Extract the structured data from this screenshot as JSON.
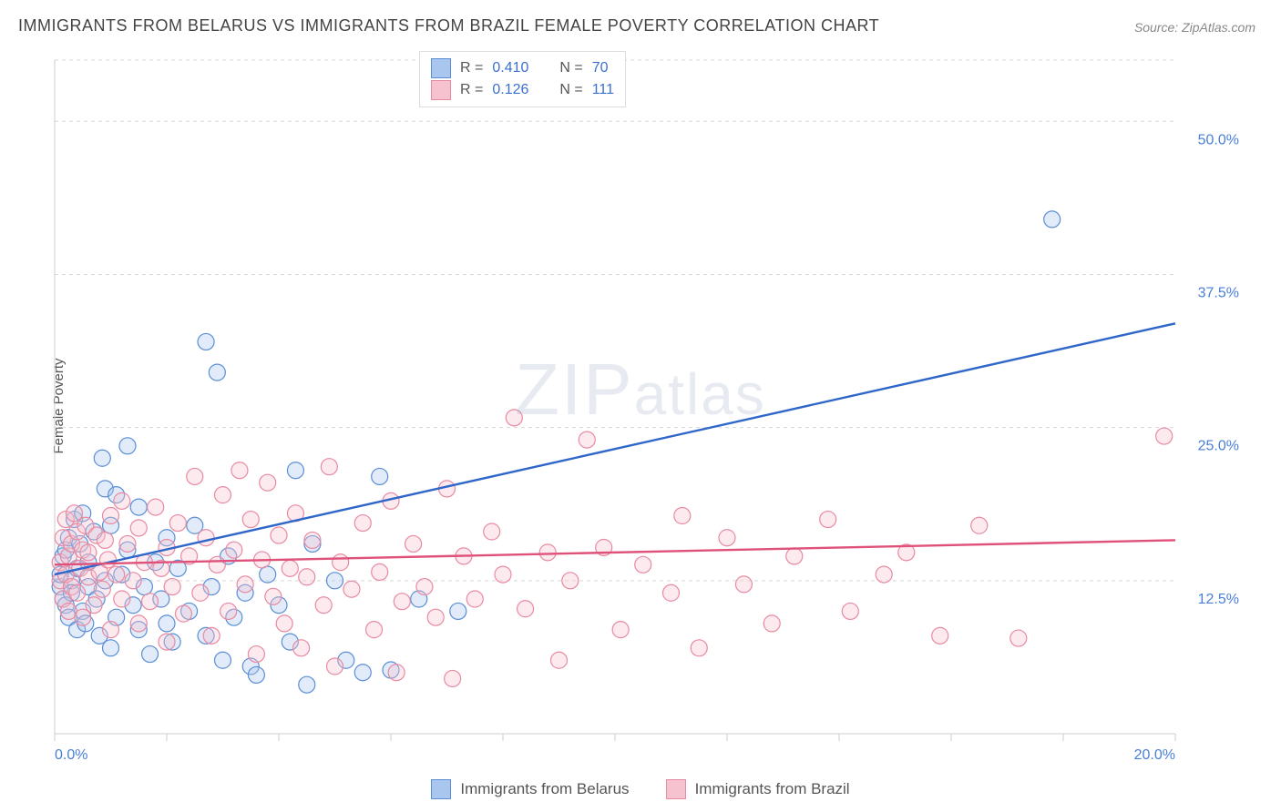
{
  "title": "IMMIGRANTS FROM BELARUS VS IMMIGRANTS FROM BRAZIL FEMALE POVERTY CORRELATION CHART",
  "source": "Source: ZipAtlas.com",
  "ylabel": "Female Poverty",
  "watermark_main": "ZIP",
  "watermark_rest": "atlas",
  "chart": {
    "type": "scatter",
    "xlim": [
      0,
      20
    ],
    "ylim": [
      0,
      55
    ],
    "background_color": "#ffffff",
    "grid_color": "#d8d8d8",
    "grid_dash": "4 4",
    "y_gridlines": [
      12.5,
      25.0,
      37.5,
      50.0
    ],
    "ytick_labels": [
      "12.5%",
      "25.0%",
      "37.5%",
      "50.0%"
    ],
    "x_axis_start_label": "0.0%",
    "x_axis_end_label": "20.0%",
    "x_ticks": [
      0,
      2,
      4,
      6,
      8,
      10,
      12,
      14,
      16,
      18,
      20
    ],
    "marker_radius": 9,
    "marker_stroke_width": 1.2,
    "fill_opacity": 0.35,
    "trend_line_width": 2.4,
    "series": [
      {
        "name": "Immigrants from Belarus",
        "color_fill": "#a9c7ee",
        "color_stroke": "#5b8ed6",
        "trend_color": "#2f66c9",
        "R": "0.410",
        "N": "70",
        "trend": {
          "x1": 0,
          "y1": 13.0,
          "x2": 20,
          "y2": 33.5
        },
        "points": [
          [
            0.1,
            12.0
          ],
          [
            0.1,
            13.0
          ],
          [
            0.15,
            11.0
          ],
          [
            0.15,
            14.5
          ],
          [
            0.2,
            15.0
          ],
          [
            0.2,
            10.5
          ],
          [
            0.25,
            9.5
          ],
          [
            0.25,
            16.0
          ],
          [
            0.3,
            12.5
          ],
          [
            0.3,
            11.5
          ],
          [
            0.35,
            17.5
          ],
          [
            0.4,
            8.5
          ],
          [
            0.4,
            13.5
          ],
          [
            0.45,
            15.5
          ],
          [
            0.5,
            10.0
          ],
          [
            0.5,
            18.0
          ],
          [
            0.55,
            9.0
          ],
          [
            0.6,
            12.0
          ],
          [
            0.6,
            14.0
          ],
          [
            0.7,
            16.5
          ],
          [
            0.75,
            11.0
          ],
          [
            0.8,
            8.0
          ],
          [
            0.85,
            22.5
          ],
          [
            0.9,
            20.0
          ],
          [
            0.9,
            12.5
          ],
          [
            1.0,
            7.0
          ],
          [
            1.0,
            17.0
          ],
          [
            1.1,
            19.5
          ],
          [
            1.1,
            9.5
          ],
          [
            1.2,
            13.0
          ],
          [
            1.3,
            15.0
          ],
          [
            1.3,
            23.5
          ],
          [
            1.4,
            10.5
          ],
          [
            1.5,
            8.5
          ],
          [
            1.5,
            18.5
          ],
          [
            1.6,
            12.0
          ],
          [
            1.7,
            6.5
          ],
          [
            1.8,
            14.0
          ],
          [
            1.9,
            11.0
          ],
          [
            2.0,
            9.0
          ],
          [
            2.0,
            16.0
          ],
          [
            2.1,
            7.5
          ],
          [
            2.2,
            13.5
          ],
          [
            2.4,
            10.0
          ],
          [
            2.5,
            17.0
          ],
          [
            2.7,
            8.0
          ],
          [
            2.7,
            32.0
          ],
          [
            2.8,
            12.0
          ],
          [
            2.9,
            29.5
          ],
          [
            3.0,
            6.0
          ],
          [
            3.1,
            14.5
          ],
          [
            3.2,
            9.5
          ],
          [
            3.4,
            11.5
          ],
          [
            3.5,
            5.5
          ],
          [
            3.6,
            4.8
          ],
          [
            3.8,
            13.0
          ],
          [
            4.0,
            10.5
          ],
          [
            4.2,
            7.5
          ],
          [
            4.3,
            21.5
          ],
          [
            4.5,
            4.0
          ],
          [
            4.6,
            15.5
          ],
          [
            5.0,
            12.5
          ],
          [
            5.2,
            6.0
          ],
          [
            5.5,
            5.0
          ],
          [
            5.8,
            21.0
          ],
          [
            6.0,
            5.2
          ],
          [
            6.5,
            11.0
          ],
          [
            7.2,
            10.0
          ],
          [
            17.8,
            42.0
          ]
        ]
      },
      {
        "name": "Immigrants from Brazil",
        "color_fill": "#f6c2cf",
        "color_stroke": "#e88aa2",
        "trend_color": "#e0517a",
        "R": "0.126",
        "N": "111",
        "trend": {
          "x1": 0,
          "y1": 13.8,
          "x2": 20,
          "y2": 15.8
        },
        "points": [
          [
            0.1,
            14.0
          ],
          [
            0.1,
            12.5
          ],
          [
            0.15,
            16.0
          ],
          [
            0.15,
            11.0
          ],
          [
            0.2,
            13.0
          ],
          [
            0.2,
            17.5
          ],
          [
            0.25,
            10.0
          ],
          [
            0.25,
            14.5
          ],
          [
            0.3,
            15.5
          ],
          [
            0.3,
            12.0
          ],
          [
            0.35,
            18.0
          ],
          [
            0.4,
            11.5
          ],
          [
            0.4,
            16.5
          ],
          [
            0.45,
            13.5
          ],
          [
            0.5,
            9.5
          ],
          [
            0.5,
            15.0
          ],
          [
            0.55,
            17.0
          ],
          [
            0.6,
            12.8
          ],
          [
            0.6,
            14.8
          ],
          [
            0.7,
            10.5
          ],
          [
            0.75,
            16.2
          ],
          [
            0.8,
            13.2
          ],
          [
            0.85,
            11.8
          ],
          [
            0.9,
            15.8
          ],
          [
            0.95,
            14.2
          ],
          [
            1.0,
            8.5
          ],
          [
            1.0,
            17.8
          ],
          [
            1.1,
            13.0
          ],
          [
            1.2,
            11.0
          ],
          [
            1.2,
            19.0
          ],
          [
            1.3,
            15.5
          ],
          [
            1.4,
            12.5
          ],
          [
            1.5,
            9.0
          ],
          [
            1.5,
            16.8
          ],
          [
            1.6,
            14.0
          ],
          [
            1.7,
            10.8
          ],
          [
            1.8,
            18.5
          ],
          [
            1.9,
            13.5
          ],
          [
            2.0,
            7.5
          ],
          [
            2.0,
            15.2
          ],
          [
            2.1,
            12.0
          ],
          [
            2.2,
            17.2
          ],
          [
            2.3,
            9.8
          ],
          [
            2.4,
            14.5
          ],
          [
            2.5,
            21.0
          ],
          [
            2.6,
            11.5
          ],
          [
            2.7,
            16.0
          ],
          [
            2.8,
            8.0
          ],
          [
            2.9,
            13.8
          ],
          [
            3.0,
            19.5
          ],
          [
            3.1,
            10.0
          ],
          [
            3.2,
            15.0
          ],
          [
            3.3,
            21.5
          ],
          [
            3.4,
            12.2
          ],
          [
            3.5,
            17.5
          ],
          [
            3.6,
            6.5
          ],
          [
            3.7,
            14.2
          ],
          [
            3.8,
            20.5
          ],
          [
            3.9,
            11.2
          ],
          [
            4.0,
            16.2
          ],
          [
            4.1,
            9.0
          ],
          [
            4.2,
            13.5
          ],
          [
            4.3,
            18.0
          ],
          [
            4.4,
            7.0
          ],
          [
            4.5,
            12.8
          ],
          [
            4.6,
            15.8
          ],
          [
            4.8,
            10.5
          ],
          [
            4.9,
            21.8
          ],
          [
            5.0,
            5.5
          ],
          [
            5.1,
            14.0
          ],
          [
            5.3,
            11.8
          ],
          [
            5.5,
            17.2
          ],
          [
            5.7,
            8.5
          ],
          [
            5.8,
            13.2
          ],
          [
            6.0,
            19.0
          ],
          [
            6.1,
            5.0
          ],
          [
            6.2,
            10.8
          ],
          [
            6.4,
            15.5
          ],
          [
            6.6,
            12.0
          ],
          [
            6.8,
            9.5
          ],
          [
            7.0,
            20.0
          ],
          [
            7.1,
            4.5
          ],
          [
            7.3,
            14.5
          ],
          [
            7.5,
            11.0
          ],
          [
            7.8,
            16.5
          ],
          [
            8.0,
            13.0
          ],
          [
            8.2,
            25.8
          ],
          [
            8.4,
            10.2
          ],
          [
            8.8,
            14.8
          ],
          [
            9.0,
            6.0
          ],
          [
            9.2,
            12.5
          ],
          [
            9.5,
            24.0
          ],
          [
            9.8,
            15.2
          ],
          [
            10.1,
            8.5
          ],
          [
            10.5,
            13.8
          ],
          [
            11.0,
            11.5
          ],
          [
            11.2,
            17.8
          ],
          [
            11.5,
            7.0
          ],
          [
            12.0,
            16.0
          ],
          [
            12.3,
            12.2
          ],
          [
            12.8,
            9.0
          ],
          [
            13.2,
            14.5
          ],
          [
            13.8,
            17.5
          ],
          [
            14.2,
            10.0
          ],
          [
            14.8,
            13.0
          ],
          [
            15.2,
            14.8
          ],
          [
            15.8,
            8.0
          ],
          [
            16.5,
            17.0
          ],
          [
            17.2,
            7.8
          ],
          [
            19.8,
            24.3
          ]
        ]
      }
    ]
  },
  "legend_labels": {
    "r_prefix": "R =",
    "n_prefix": "N ="
  }
}
